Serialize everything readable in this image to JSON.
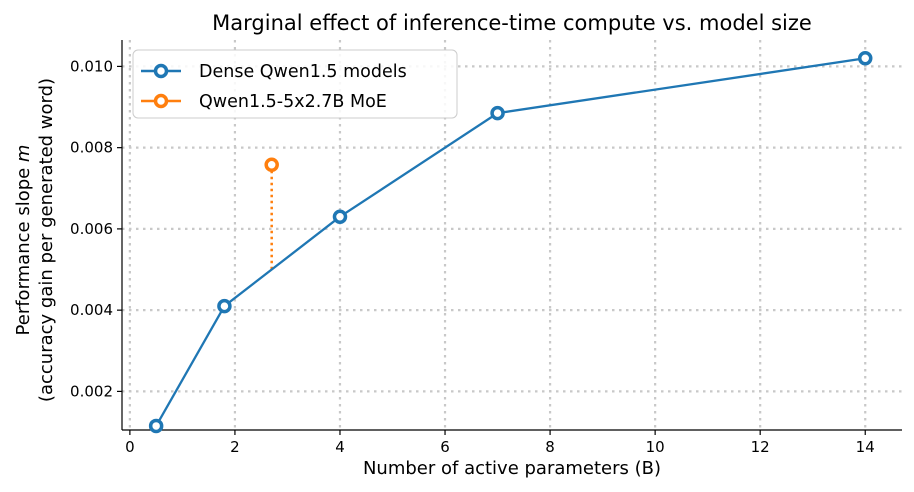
{
  "chart_data": {
    "type": "line",
    "title": "Marginal effect of inference-time compute vs. model size",
    "xlabel": "Number of active parameters (B)",
    "ylabel_line1": "Performance slope m",
    "ylabel_line2": "(accuracy gain per generated word)",
    "xlim": [
      -0.15,
      14.7
    ],
    "ylim": [
      0.00105,
      0.01065
    ],
    "xticks": [
      0,
      2,
      4,
      6,
      8,
      10,
      12,
      14
    ],
    "yticks": [
      0.002,
      0.004,
      0.006,
      0.008,
      0.01
    ],
    "xtick_labels": [
      "0",
      "2",
      "4",
      "6",
      "8",
      "10",
      "12",
      "14"
    ],
    "ytick_labels": [
      "0.002",
      "0.004",
      "0.006",
      "0.008",
      "0.010"
    ],
    "grid": true,
    "legend_position": "top-left",
    "series": [
      {
        "name": "Dense Qwen1.5 models",
        "color": "#1f77b4",
        "x": [
          0.5,
          1.8,
          4,
          7,
          14
        ],
        "y": [
          0.00115,
          0.0041,
          0.0063,
          0.00885,
          0.0102
        ]
      },
      {
        "name": "Qwen1.5-5x2.7B MoE",
        "color": "#ff7f0e",
        "x": [
          2.7
        ],
        "y": [
          0.00758
        ]
      }
    ],
    "annotations": [
      {
        "type": "dotted-vertical",
        "color": "#ff7f0e",
        "x": 2.7,
        "y_from": 0.00758,
        "y_to": 0.00495
      }
    ]
  }
}
